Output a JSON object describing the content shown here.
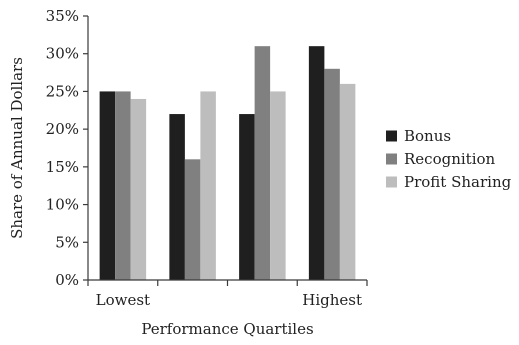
{
  "chart_data": {
    "type": "bar",
    "title": "",
    "xlabel": "Performance Quartiles",
    "ylabel": "Share of Annual Dollars",
    "ylim": [
      0,
      35
    ],
    "yticks": [
      0,
      5,
      10,
      15,
      20,
      25,
      30,
      35
    ],
    "ytick_suffix": "%",
    "categories": [
      "Lowest",
      "",
      "",
      "Highest"
    ],
    "series": [
      {
        "name": "Bonus",
        "color": "#1f1f1f",
        "values": [
          25,
          22,
          22,
          31
        ]
      },
      {
        "name": "Recognition",
        "color": "#808080",
        "values": [
          25,
          16,
          31,
          28
        ]
      },
      {
        "name": "Profit Sharing",
        "color": "#bdbdbd",
        "values": [
          24,
          25,
          25,
          26
        ]
      }
    ],
    "grid": false,
    "legend_position": "right"
  }
}
